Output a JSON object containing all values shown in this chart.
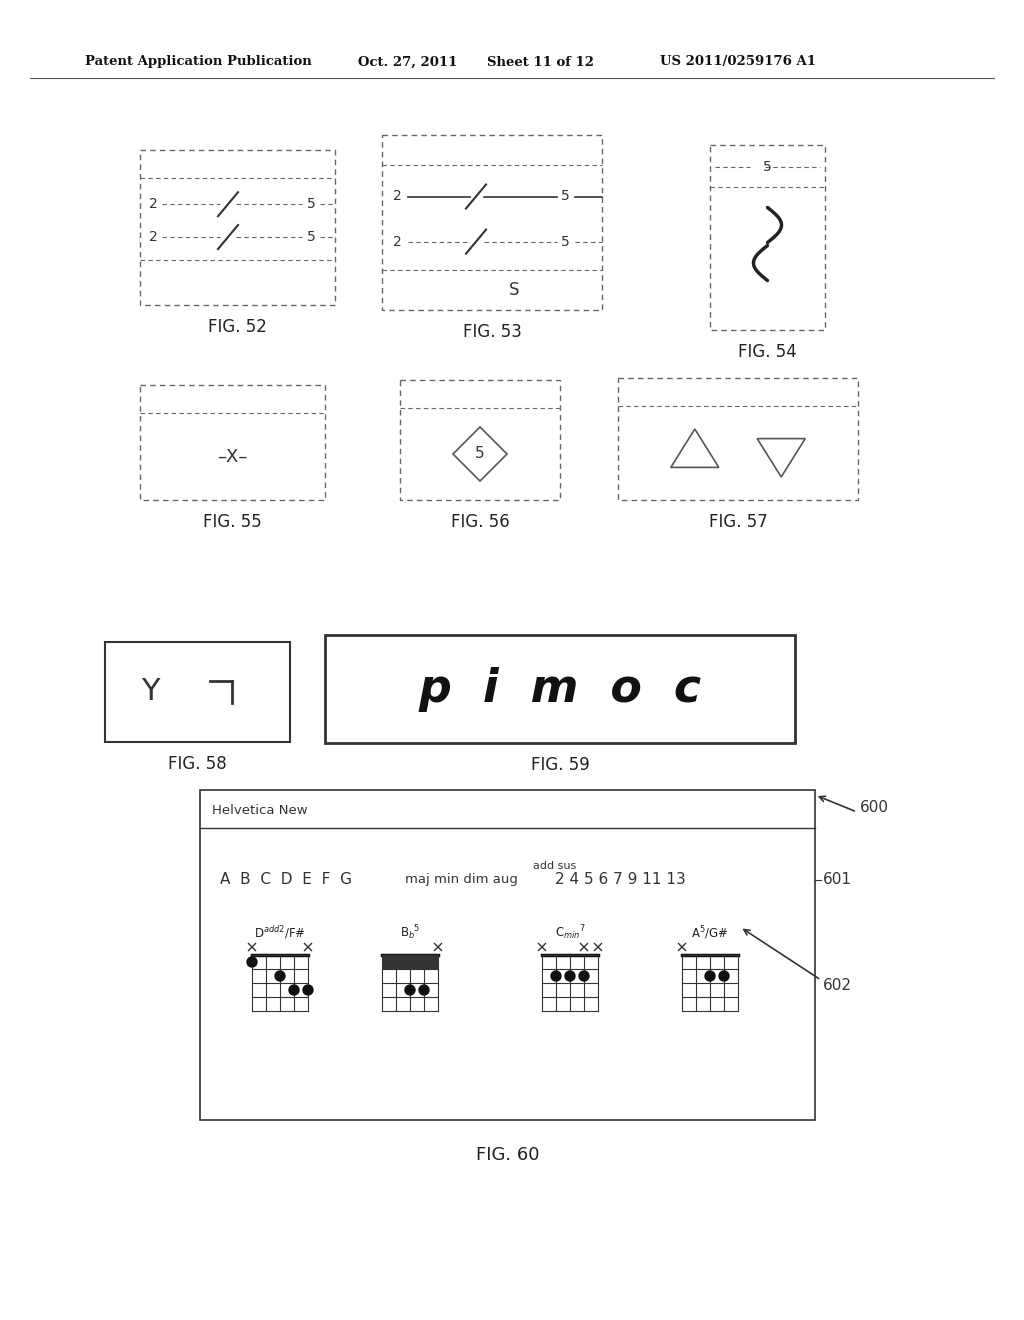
{
  "bg_color": "#ffffff",
  "header_left": "Patent Application Publication",
  "header_mid1": "Oct. 27, 2011",
  "header_mid2": "Sheet 11 of 12",
  "header_right": "US 2011/0259176 A1",
  "fig_labels": [
    "FIG. 52",
    "FIG. 53",
    "FIG. 54",
    "FIG. 55",
    "FIG. 56",
    "FIG. 57",
    "FIG. 58",
    "FIG. 59",
    "FIG. 60"
  ],
  "chord_titles": [
    "D$^{add2}$/F#",
    "B$_b$$^5$",
    "C$_{min}$$^7$",
    "A$^5$/G#"
  ],
  "fig60_inner_label": "Helvetica New",
  "font_row": "A  B  C  D  E  F  G  maj min dim aug",
  "font_row2": "2 4 5 6 7 9 11 13",
  "font_row_super": "add sus",
  "ref600": "600",
  "ref601": "601",
  "ref602": "602"
}
